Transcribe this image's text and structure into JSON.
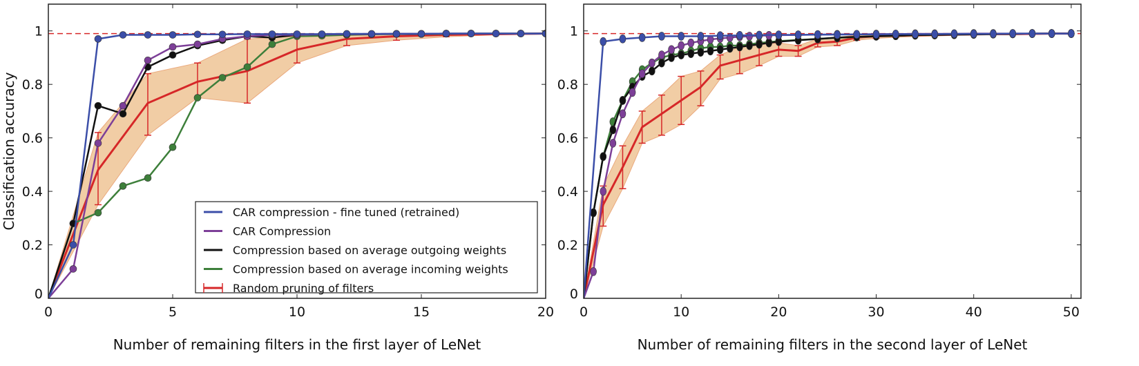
{
  "colors": {
    "blue": "#3b4ea8",
    "purple": "#7d3f98",
    "black": "#111111",
    "green": "#3d7f3a",
    "red": "#d62728",
    "band": "#f0c89c",
    "ref": "#d62728"
  },
  "chart_data": [
    {
      "type": "line",
      "ylabel": "Classification accuracy",
      "xlabel": "Number of remaining filters in the first layer of LeNet",
      "xlim": [
        0,
        20
      ],
      "ylim": [
        0,
        1.1
      ],
      "xticks": [
        0,
        5,
        10,
        15,
        20
      ],
      "yticks": [
        0,
        0.2,
        0.4,
        0.6,
        0.8,
        1
      ],
      "ytick_labels": [
        "0",
        "0.2",
        "0.4",
        "0.6",
        "0.8",
        "1"
      ],
      "reference_line": 0.99,
      "legend": {
        "placement": "lower-right",
        "entries": [
          "CAR compression - fine tuned (retrained)",
          "CAR Compression",
          "Compression based on average outgoing weights",
          "Compression based on average incoming weights",
          "Random pruning of filters"
        ]
      },
      "series": [
        {
          "name": "CAR compression - fine tuned (retrained)",
          "color": "blue",
          "x": [
            0,
            1,
            2,
            3,
            4,
            5,
            6,
            7,
            8,
            9,
            10,
            11,
            12,
            13,
            14,
            15,
            16,
            17,
            18,
            19,
            20
          ],
          "y": [
            0,
            0.2,
            0.97,
            0.985,
            0.985,
            0.985,
            0.987,
            0.987,
            0.988,
            0.988,
            0.988,
            0.988,
            0.989,
            0.989,
            0.989,
            0.989,
            0.99,
            0.99,
            0.99,
            0.99,
            0.99
          ]
        },
        {
          "name": "CAR Compression",
          "color": "purple",
          "x": [
            0,
            1,
            2,
            3,
            4,
            5,
            6,
            7,
            8,
            9,
            10,
            11,
            12,
            13,
            14,
            15,
            16,
            17,
            18,
            19,
            20
          ],
          "y": [
            0,
            0.11,
            0.58,
            0.72,
            0.89,
            0.94,
            0.95,
            0.97,
            0.98,
            0.985,
            0.985,
            0.987,
            0.988,
            0.988,
            0.989,
            0.989,
            0.99,
            0.99,
            0.99,
            0.99,
            0.99
          ]
        },
        {
          "name": "Compression based on average outgoing weights",
          "color": "black",
          "x": [
            0,
            1,
            2,
            3,
            4,
            5,
            6,
            7,
            8,
            9,
            10,
            11,
            12,
            13,
            14,
            15,
            16,
            17,
            18,
            19,
            20
          ],
          "y": [
            0,
            0.28,
            0.72,
            0.69,
            0.865,
            0.91,
            0.945,
            0.965,
            0.98,
            0.975,
            0.985,
            0.987,
            0.988,
            0.988,
            0.989,
            0.989,
            0.99,
            0.99,
            0.99,
            0.99,
            0.99
          ]
        },
        {
          "name": "Compression based on average incoming weights",
          "color": "green",
          "x": [
            0,
            1,
            2,
            3,
            4,
            5,
            6,
            7,
            8,
            9,
            10,
            11,
            12,
            13,
            14,
            15,
            16,
            17,
            18,
            19,
            20
          ],
          "y": [
            0,
            0.28,
            0.32,
            0.42,
            0.45,
            0.565,
            0.75,
            0.825,
            0.865,
            0.95,
            0.98,
            0.982,
            0.985,
            0.987,
            0.988,
            0.988,
            0.989,
            0.99,
            0.99,
            0.99,
            0.99
          ]
        }
      ],
      "random": {
        "name": "Random pruning of filters",
        "x": [
          0,
          2,
          4,
          6,
          8,
          10,
          12,
          14,
          16,
          18,
          20
        ],
        "mean": [
          0,
          0.48,
          0.73,
          0.81,
          0.85,
          0.93,
          0.97,
          0.98,
          0.985,
          0.988,
          0.99
        ],
        "lower": [
          0,
          0.35,
          0.61,
          0.75,
          0.73,
          0.88,
          0.945,
          0.965,
          0.978,
          0.985,
          0.988
        ],
        "upper": [
          0,
          0.62,
          0.84,
          0.88,
          0.97,
          0.98,
          0.99,
          0.99,
          0.99,
          0.99,
          0.99
        ]
      }
    },
    {
      "type": "line",
      "xlabel": "Number of remaining filters in the second layer of LeNet",
      "xlim": [
        0,
        51
      ],
      "ylim": [
        0,
        1.1
      ],
      "xticks": [
        0,
        10,
        20,
        30,
        40,
        50
      ],
      "yticks": [
        0,
        0.2,
        0.4,
        0.6,
        0.8,
        1
      ],
      "ytick_labels": [
        "0",
        "0.2",
        "0.4",
        "0.6",
        "0.8",
        "1"
      ],
      "reference_line": 0.99,
      "series": [
        {
          "name": "CAR compression - fine tuned (retrained)",
          "color": "blue",
          "x": [
            0,
            2,
            4,
            6,
            8,
            10,
            12,
            14,
            16,
            18,
            20,
            22,
            24,
            26,
            28,
            30,
            32,
            34,
            36,
            38,
            40,
            42,
            44,
            46,
            48,
            50
          ],
          "y": [
            0,
            0.96,
            0.97,
            0.975,
            0.98,
            0.98,
            0.98,
            0.982,
            0.983,
            0.984,
            0.985,
            0.985,
            0.986,
            0.986,
            0.987,
            0.987,
            0.988,
            0.988,
            0.988,
            0.989,
            0.989,
            0.989,
            0.99,
            0.99,
            0.99,
            0.99
          ]
        },
        {
          "name": "CAR Compression",
          "color": "purple",
          "x": [
            0,
            1,
            2,
            3,
            4,
            5,
            6,
            7,
            8,
            9,
            10,
            11,
            12,
            13,
            14,
            15,
            16,
            17,
            18,
            19,
            20,
            22,
            24,
            26,
            28,
            30,
            32,
            34,
            36,
            38,
            40,
            42,
            44,
            46,
            48,
            50
          ],
          "y": [
            0,
            0.1,
            0.4,
            0.58,
            0.69,
            0.77,
            0.84,
            0.88,
            0.91,
            0.93,
            0.945,
            0.955,
            0.962,
            0.968,
            0.972,
            0.975,
            0.978,
            0.98,
            0.982,
            0.983,
            0.984,
            0.985,
            0.986,
            0.987,
            0.987,
            0.988,
            0.988,
            0.989,
            0.989,
            0.989,
            0.99,
            0.99,
            0.99,
            0.99,
            0.99,
            0.99
          ]
        },
        {
          "name": "Compression based on average outgoing weights",
          "color": "black",
          "x": [
            0,
            1,
            2,
            3,
            4,
            5,
            6,
            7,
            8,
            9,
            10,
            11,
            12,
            13,
            14,
            15,
            16,
            17,
            18,
            19,
            20,
            22,
            24,
            26,
            28,
            30,
            32,
            34,
            36,
            38,
            40,
            42,
            44,
            46,
            48,
            50
          ],
          "y": [
            0,
            0.32,
            0.53,
            0.63,
            0.74,
            0.79,
            0.83,
            0.85,
            0.88,
            0.9,
            0.91,
            0.915,
            0.92,
            0.925,
            0.93,
            0.935,
            0.94,
            0.945,
            0.95,
            0.955,
            0.96,
            0.965,
            0.97,
            0.975,
            0.978,
            0.98,
            0.982,
            0.984,
            0.985,
            0.986,
            0.987,
            0.988,
            0.989,
            0.99,
            0.99,
            0.99
          ]
        },
        {
          "name": "Compression based on average incoming weights",
          "color": "green",
          "x": [
            0,
            1,
            2,
            3,
            4,
            5,
            6,
            7,
            8,
            9,
            10,
            11,
            12,
            13,
            14,
            15,
            16,
            17,
            18,
            19,
            20,
            22,
            24,
            26,
            28,
            30,
            32,
            34,
            36,
            38,
            40,
            42,
            44,
            46,
            48,
            50
          ],
          "y": [
            0,
            0.32,
            0.53,
            0.66,
            0.74,
            0.81,
            0.855,
            0.88,
            0.9,
            0.91,
            0.915,
            0.925,
            0.935,
            0.94,
            0.94,
            0.945,
            0.945,
            0.95,
            0.955,
            0.958,
            0.962,
            0.966,
            0.97,
            0.974,
            0.977,
            0.98,
            0.982,
            0.984,
            0.985,
            0.986,
            0.987,
            0.988,
            0.989,
            0.99,
            0.99,
            0.99
          ]
        }
      ],
      "random": {
        "name": "Random pruning of filters",
        "x": [
          0,
          2,
          4,
          6,
          8,
          10,
          12,
          14,
          16,
          18,
          20,
          22,
          24,
          26,
          28,
          30,
          32,
          34,
          36,
          38,
          40,
          42,
          44,
          46,
          48,
          50
        ],
        "mean": [
          0,
          0.35,
          0.49,
          0.64,
          0.69,
          0.74,
          0.79,
          0.87,
          0.89,
          0.91,
          0.93,
          0.925,
          0.955,
          0.96,
          0.975,
          0.98,
          0.982,
          0.984,
          0.985,
          0.986,
          0.987,
          0.988,
          0.988,
          0.989,
          0.99,
          0.99
        ],
        "lower": [
          0,
          0.27,
          0.41,
          0.58,
          0.61,
          0.65,
          0.72,
          0.82,
          0.84,
          0.87,
          0.905,
          0.905,
          0.94,
          0.945,
          0.965,
          0.972,
          0.976,
          0.979,
          0.981,
          0.983,
          0.985,
          0.986,
          0.987,
          0.988,
          0.989,
          0.989
        ],
        "upper": [
          0,
          0.42,
          0.57,
          0.7,
          0.76,
          0.83,
          0.85,
          0.91,
          0.94,
          0.95,
          0.955,
          0.945,
          0.97,
          0.975,
          0.985,
          0.988,
          0.988,
          0.989,
          0.989,
          0.99,
          0.99,
          0.99,
          0.99,
          0.99,
          0.99,
          0.99
        ]
      }
    }
  ]
}
